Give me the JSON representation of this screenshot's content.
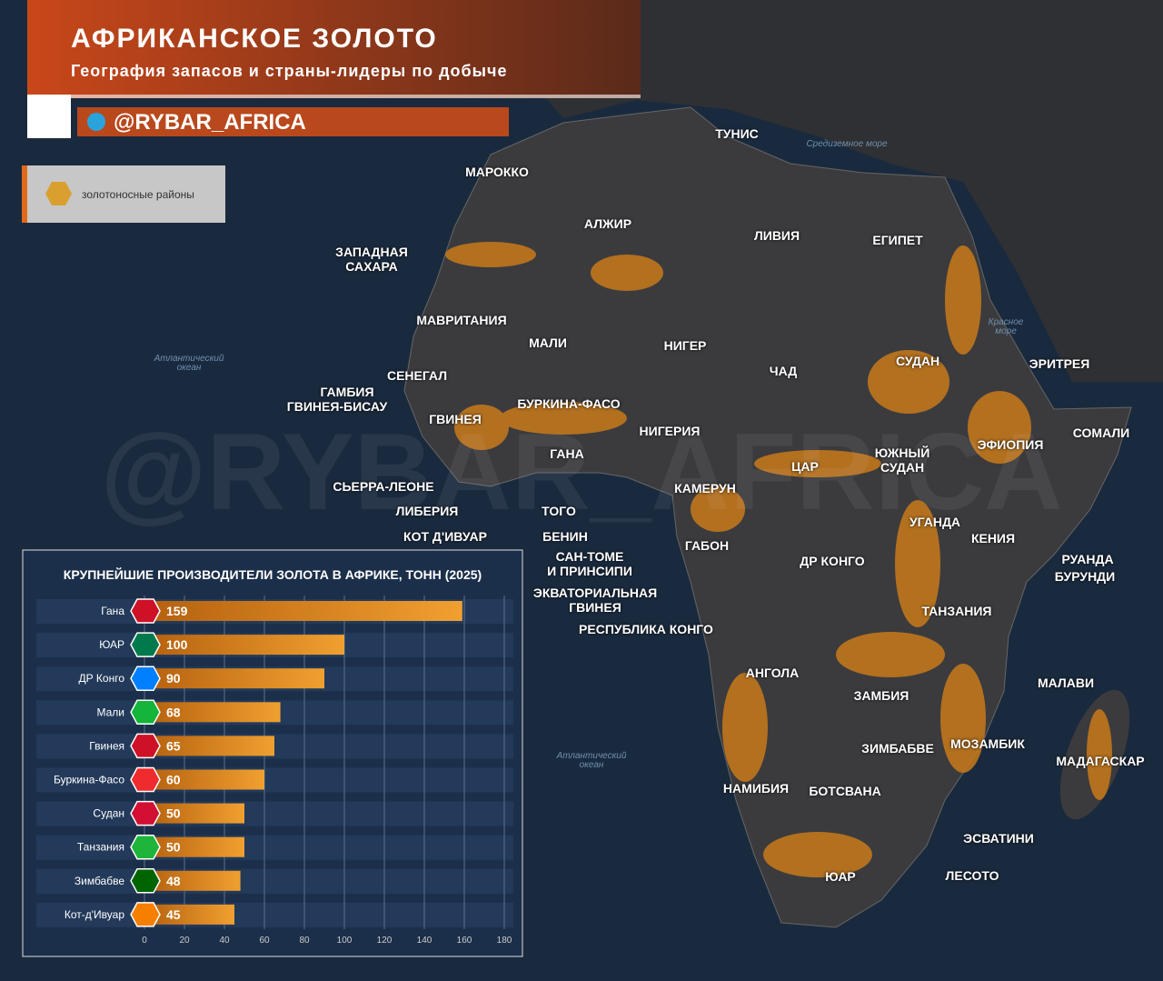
{
  "header": {
    "title": "АФРИКАНСКОЕ ЗОЛОТО",
    "subtitle": "География запасов и страны-лидеры по добыче",
    "handle": "@RYBAR_AFRICA"
  },
  "watermark": "@RYBAR_AFRICA",
  "legend": {
    "label": "золотоносные районы"
  },
  "map": {
    "labels": [
      "ТУНИС",
      "МАРОККО",
      "АЛЖИР",
      "ЛИВИЯ",
      "ЕГИПЕТ",
      "ЗАПАДНАЯ\nСАХАРА",
      "МАВРИТАНИЯ",
      "МАЛИ",
      "НИГЕР",
      "ЧАД",
      "СУДАН",
      "ЭРИТРЕЯ",
      "СЕНЕГАЛ",
      "ГАМБИЯ",
      "ГВИНЕЯ-БИСАУ",
      "ГВИНЕЯ",
      "БУРКИНА-ФАСО",
      "НИГЕРИЯ",
      "ГАНА",
      "ЦАР",
      "ЮЖНЫЙ\nСУДАН",
      "ЭФИОПИЯ",
      "СОМАЛИ",
      "СЬЕРРА-ЛЕОНЕ",
      "ЛИБЕРИЯ",
      "ТОГО",
      "КОТ Д'ИВУАР",
      "БЕНИН",
      "КАМЕРУН",
      "УГАНДА",
      "КЕНИЯ",
      "ГАБОН",
      "САН-ТОМЕ\nИ ПРИНСИПИ",
      "ДР КОНГО",
      "РУАНДА",
      "БУРУНДИ",
      "ЭКВАТОРИАЛЬНАЯ\nГВИНЕЯ",
      "ТАНЗАНИЯ",
      "РЕСПУБЛИКА КОНГО",
      "АНГОЛА",
      "МАЛАВИ",
      "ЗАМБИЯ",
      "ЗИМБАБВЕ",
      "МОЗАМБИК",
      "МАДАГАСКАР",
      "НАМИБИЯ",
      "БОТСВАНА",
      "ЭСВАТИНИ",
      "ЮАР",
      "ЛЕСОТО"
    ],
    "water": [
      "Средиземное море",
      "Атлантический\nокеан",
      "Красное\nморе",
      "Атлантический\nокеан"
    ]
  },
  "chart_data": {
    "type": "bar",
    "orientation": "horizontal",
    "title": "КРУПНЕЙШИЕ ПРОИЗВОДИТЕЛИ ЗОЛОТА В АФРИКЕ, ТОНН (2025)",
    "categories": [
      "Гана",
      "ЮАР",
      "ДР Конго",
      "Мали",
      "Гвинея",
      "Буркина-Фасо",
      "Судан",
      "Танзания",
      "Зимбабве",
      "Кот-д'Ивуар"
    ],
    "values": [
      159,
      100,
      90,
      68,
      65,
      60,
      50,
      50,
      48,
      45
    ],
    "color": "#e08a1e",
    "xlim": [
      0,
      180
    ],
    "xticks": [
      0,
      20,
      40,
      60,
      80,
      100,
      120,
      140,
      160,
      180
    ],
    "grid": true
  }
}
